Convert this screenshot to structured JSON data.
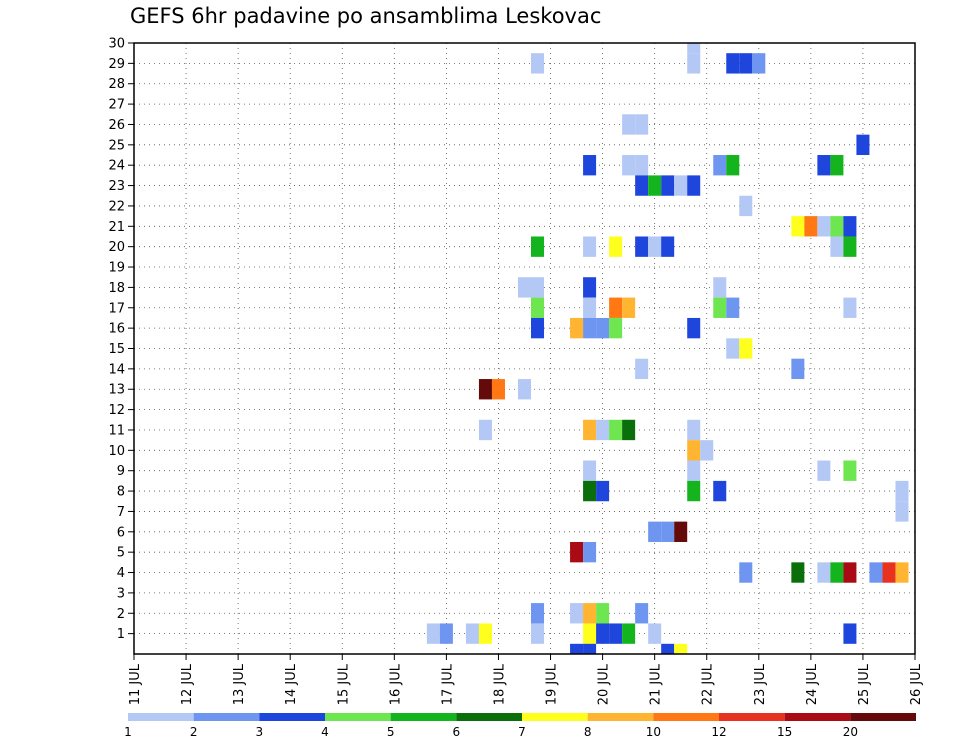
{
  "chart_data": {
    "type": "heatmap",
    "title": "GEFS 6hr padavine po ansamblima Leskovac",
    "x_ticks": [
      "11 JUL",
      "12 JUL",
      "13 JUL",
      "14 JUL",
      "15 JUL",
      "16 JUL",
      "17 JUL",
      "18 JUL",
      "19 JUL",
      "20 JUL",
      "21 JUL",
      "22 JUL",
      "23 JUL",
      "24 JUL",
      "25 JUL",
      "26 JUL"
    ],
    "y_ticks": [
      "1",
      "2",
      "3",
      "4",
      "5",
      "6",
      "7",
      "8",
      "9",
      "10",
      "11",
      "12",
      "13",
      "14",
      "15",
      "16",
      "17",
      "18",
      "19",
      "20",
      "21",
      "22",
      "23",
      "24",
      "25",
      "26",
      "27",
      "28",
      "29",
      "30"
    ],
    "x_range_days": [
      11,
      26
    ],
    "y_range": [
      0,
      30
    ],
    "grid": true,
    "colorbar": {
      "colors": [
        "#b4c8f5",
        "#6e96f0",
        "#1e46dc",
        "#6ee650",
        "#14b41e",
        "#0a6e0a",
        "#ffff1e",
        "#ffb432",
        "#ff7814",
        "#e6321e",
        "#aa0a14",
        "#640a0a"
      ],
      "labels": [
        "1",
        "2",
        "3",
        "4",
        "5",
        "6",
        "7",
        "8",
        "10",
        "12",
        "15",
        "20"
      ]
    },
    "cells": [
      {
        "t": "30 JUL 21:18",
        "y": 30,
        "c": 0
      },
      {
        "t": "29 JUL 18:18",
        "y": 29,
        "c": 0
      },
      {
        "t": "29 JUL 21:18",
        "y": 29,
        "c": 0
      },
      {
        "t": "29 JUL 22:12",
        "y": 29,
        "c": 2
      },
      {
        "t": "29 JUL 22:18",
        "y": 29,
        "c": 2
      },
      {
        "t": "29 JUL 23:00",
        "y": 29,
        "c": 1
      },
      {
        "t": "26 JUL 20:12",
        "y": 26,
        "c": 0
      },
      {
        "t": "26 JUL 20:18",
        "y": 26,
        "c": 0
      },
      {
        "t": "25 JUL 25:00",
        "y": 25,
        "c": 2
      },
      {
        "t": "24 JUL 19:18",
        "y": 24,
        "c": 2
      },
      {
        "t": "24 JUL 20:12",
        "y": 24,
        "c": 0
      },
      {
        "t": "24 JUL 20:18",
        "y": 24,
        "c": 0
      },
      {
        "t": "24 JUL 22:06",
        "y": 24,
        "c": 1
      },
      {
        "t": "24 JUL 22:12",
        "y": 24,
        "c": 4
      },
      {
        "t": "24 JUL 24:06",
        "y": 24,
        "c": 2
      },
      {
        "t": "24 JUL 24:12",
        "y": 24,
        "c": 4
      },
      {
        "t": "23 JUL 20:18",
        "y": 23,
        "c": 2
      },
      {
        "t": "23 JUL 21:00",
        "y": 23,
        "c": 4
      },
      {
        "t": "23 JUL 21:06",
        "y": 23,
        "c": 2
      },
      {
        "t": "23 JUL 21:12",
        "y": 23,
        "c": 0
      },
      {
        "t": "23 JUL 21:18",
        "y": 23,
        "c": 2
      },
      {
        "t": "22 JUL 22:18",
        "y": 22,
        "c": 0
      },
      {
        "t": "21 JUL 23:18",
        "y": 21,
        "c": 6
      },
      {
        "t": "21 JUL 24:00",
        "y": 21,
        "c": 8
      },
      {
        "t": "21 JUL 24:06",
        "y": 21,
        "c": 0
      },
      {
        "t": "21 JUL 24:12",
        "y": 21,
        "c": 3
      },
      {
        "t": "21 JUL 24:18",
        "y": 21,
        "c": 2
      },
      {
        "t": "20 JUL 18:18",
        "y": 20,
        "c": 4
      },
      {
        "t": "20 JUL 19:18",
        "y": 20,
        "c": 0
      },
      {
        "t": "20 JUL 20:06",
        "y": 20,
        "c": 6
      },
      {
        "t": "20 JUL 20:18",
        "y": 20,
        "c": 2
      },
      {
        "t": "20 JUL 21:00",
        "y": 20,
        "c": 0
      },
      {
        "t": "20 JUL 21:06",
        "y": 20,
        "c": 2
      },
      {
        "t": "20 JUL 24:12",
        "y": 20,
        "c": 0
      },
      {
        "t": "20 JUL 24:18",
        "y": 20,
        "c": 4
      },
      {
        "t": "18 JUL 18:12",
        "y": 18,
        "c": 0
      },
      {
        "t": "18 JUL 18:18",
        "y": 18,
        "c": 0
      },
      {
        "t": "18 JUL 19:18",
        "y": 18,
        "c": 2
      },
      {
        "t": "18 JUL 22:06",
        "y": 18,
        "c": 0
      },
      {
        "t": "17 JUL 18:18",
        "y": 17,
        "c": 3
      },
      {
        "t": "17 JUL 19:18",
        "y": 17,
        "c": 0
      },
      {
        "t": "17 JUL 20:06",
        "y": 17,
        "c": 8
      },
      {
        "t": "17 JUL 20:12",
        "y": 17,
        "c": 7
      },
      {
        "t": "17 JUL 22:06",
        "y": 17,
        "c": 3
      },
      {
        "t": "17 JUL 22:12",
        "y": 17,
        "c": 1
      },
      {
        "t": "17 JUL 24:18",
        "y": 17,
        "c": 0
      },
      {
        "t": "16 JUL 18:18",
        "y": 16,
        "c": 2
      },
      {
        "t": "16 JUL 19:12",
        "y": 16,
        "c": 7
      },
      {
        "t": "16 JUL 19:18",
        "y": 16,
        "c": 1
      },
      {
        "t": "16 JUL 20:00",
        "y": 16,
        "c": 1
      },
      {
        "t": "16 JUL 20:06",
        "y": 16,
        "c": 3
      },
      {
        "t": "16 JUL 21:18",
        "y": 16,
        "c": 2
      },
      {
        "t": "15 JUL 22:12",
        "y": 15,
        "c": 0
      },
      {
        "t": "15 JUL 22:18",
        "y": 15,
        "c": 6
      },
      {
        "t": "14 JUL 20:18",
        "y": 14,
        "c": 0
      },
      {
        "t": "14 JUL 23:18",
        "y": 14,
        "c": 1
      },
      {
        "t": "13 JUL 17:18",
        "y": 13,
        "c": 11
      },
      {
        "t": "13 JUL 18:00",
        "y": 13,
        "c": 8
      },
      {
        "t": "13 JUL 18:12",
        "y": 13,
        "c": 0
      },
      {
        "t": "11 JUL 17:18",
        "y": 11,
        "c": 0
      },
      {
        "t": "11 JUL 19:18",
        "y": 11,
        "c": 7
      },
      {
        "t": "11 JUL 20:00",
        "y": 11,
        "c": 0
      },
      {
        "t": "11 JUL 20:06",
        "y": 11,
        "c": 3
      },
      {
        "t": "11 JUL 20:12",
        "y": 11,
        "c": 5
      },
      {
        "t": "11 JUL 21:18",
        "y": 11,
        "c": 0
      },
      {
        "t": "10 JUL 21:18",
        "y": 10,
        "c": 7
      },
      {
        "t": "10 JUL 22:00",
        "y": 10,
        "c": 0
      },
      {
        "t": "9 JUL 19:18",
        "y": 9,
        "c": 0
      },
      {
        "t": "9 JUL 21:18",
        "y": 9,
        "c": 0
      },
      {
        "t": "9 JUL 24:06",
        "y": 9,
        "c": 0
      },
      {
        "t": "9 JUL 24:18",
        "y": 9,
        "c": 3
      },
      {
        "t": "8 JUL 19:18",
        "y": 8,
        "c": 5
      },
      {
        "t": "8 JUL 20:00",
        "y": 8,
        "c": 2
      },
      {
        "t": "8 JUL 21:18",
        "y": 8,
        "c": 4
      },
      {
        "t": "8 JUL 22:06",
        "y": 8,
        "c": 2
      },
      {
        "t": "6 JUL 21:00",
        "y": 6,
        "c": 1
      },
      {
        "t": "6 JUL 21:06",
        "y": 6,
        "c": 1
      },
      {
        "t": "6 JUL 21:12",
        "y": 6,
        "c": 11
      },
      {
        "t": "5 JUL 19:12",
        "y": 5,
        "c": 10
      },
      {
        "t": "5 JUL 19:18",
        "y": 5,
        "c": 1
      },
      {
        "t": "4 JUL 22:18",
        "y": 4,
        "c": 1
      },
      {
        "t": "4 JUL 23:18",
        "y": 4,
        "c": 5
      },
      {
        "t": "4 JUL 24:06",
        "y": 4,
        "c": 0
      },
      {
        "t": "4 JUL 24:12",
        "y": 4,
        "c": 4
      },
      {
        "t": "4 JUL 24:18",
        "y": 4,
        "c": 10
      },
      {
        "t": "4 JUL 25:06",
        "y": 4,
        "c": 1
      },
      {
        "t": "4 JUL 25:12",
        "y": 4,
        "c": 9
      },
      {
        "t": "4 JUL 25:18",
        "y": 4,
        "c": 7
      },
      {
        "t": "2 JUL 18:18",
        "y": 2,
        "c": 1
      },
      {
        "t": "2 JUL 19:12",
        "y": 2,
        "c": 0
      },
      {
        "t": "2 JUL 19:18",
        "y": 2,
        "c": 7
      },
      {
        "t": "2 JUL 20:00",
        "y": 2,
        "c": 3
      },
      {
        "t": "2 JUL 20:18",
        "y": 2,
        "c": 1
      },
      {
        "t": "1 JUL 16:18",
        "y": 1,
        "c": 0
      },
      {
        "t": "1 JUL 17:00",
        "y": 1,
        "c": 1
      },
      {
        "t": "1 JUL 17:12",
        "y": 1,
        "c": 0
      },
      {
        "t": "1 JUL 17:18",
        "y": 1,
        "c": 6
      },
      {
        "t": "1 JUL 18:18",
        "y": 1,
        "c": 0
      },
      {
        "t": "1 JUL 19:18",
        "y": 1,
        "c": 6
      },
      {
        "t": "1 JUL 20:00",
        "y": 1,
        "c": 2
      },
      {
        "t": "1 JUL 20:06",
        "y": 1,
        "c": 2
      },
      {
        "t": "1 JUL 20:12",
        "y": 1,
        "c": 4
      },
      {
        "t": "1 JUL 21:00",
        "y": 1,
        "c": 0
      },
      {
        "t": "1 JUL 24:18",
        "y": 1,
        "c": 2
      },
      {
        "t": "0 JUL 19:12",
        "y": 0,
        "c": 2
      },
      {
        "t": "0 JUL 19:18",
        "y": 0,
        "c": 2
      },
      {
        "t": "0 JUL 21:06",
        "y": 0,
        "c": 2
      },
      {
        "t": "0 JUL 21:12",
        "y": 0,
        "c": 6
      },
      {
        "t": "7 JUL 25:18",
        "y": 7,
        "c": 0
      },
      {
        "t": "8 JUL 25:18",
        "y": 8,
        "c": 0
      }
    ]
  }
}
